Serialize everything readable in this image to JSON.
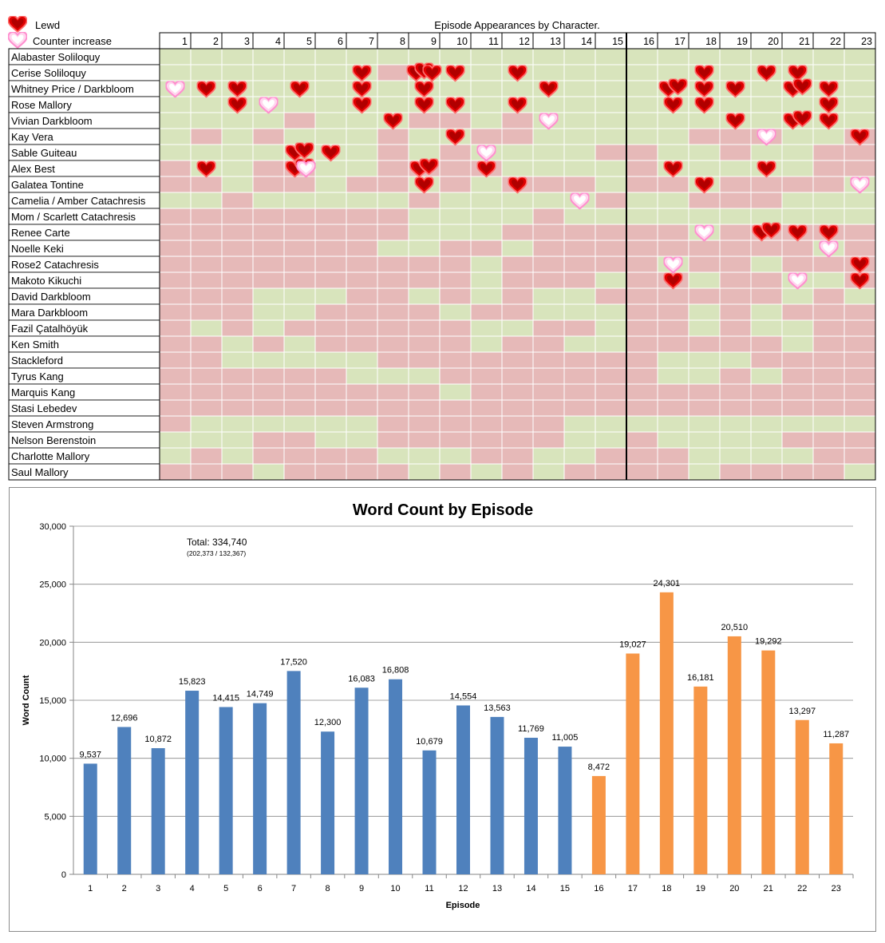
{
  "legend": {
    "lewd": "Lewd",
    "counter": "Counter increase"
  },
  "table": {
    "title": "Episode Appearances by Character.",
    "episodes": [
      "1",
      "2",
      "3",
      "4",
      "5",
      "6",
      "7",
      "8",
      "9",
      "10",
      "11",
      "12",
      "13",
      "14",
      "15",
      "16",
      "17",
      "18",
      "19",
      "20",
      "21",
      "22",
      "23"
    ],
    "characters": [
      "Alabaster Soliloquy",
      "Cerise Soliloquy",
      "Whitney Price / Darkbloom",
      "Rose Mallory",
      "Vivian Darkbloom",
      "Kay Vera",
      "Sable Guiteau",
      "Alex Best",
      "Galatea Tontine",
      "Camelia / Amber Catachresis",
      "Mom / Scarlett Catachresis",
      "Renee Carte",
      "Noelle Keki",
      "Rose2 Catachresis",
      "Makoto Kikuchi",
      "David Darkbloom",
      "Mara Darkbloom",
      "Fazil Çatalhöyük",
      "Ken Smith",
      "Stackleford",
      "Tyrus Kang",
      "Marquis Kang",
      "Stasi Lebedev",
      "Steven Armstrong",
      "Nelson Berenstoin",
      "Charlotte Mallory",
      "Saul Mallory"
    ],
    "appearances": [
      "GGGGGGGGGGGGGGGGGGGGGGG",
      "GGGGGGGRGGGGGGGGGGGGGGG",
      "GGGGGGGGGGGGGGGGGGGGGGG",
      "GGGGGGGGGGGGGGGGGGGGGGG",
      "GGGGRGGGRRGRGGGGGGGGGGG",
      "GRGRGGGRGGRRGGGGGRRRGGR",
      "GGGGGGGRGRGGGGRRGGRGGRR",
      "RGGRRGGRRRRGGGGRGGGGGRR",
      "RRGRRGRRGRGRRRGRRGRRRRG",
      "GGRGGGGGRGGGGGRGGRRRGGG",
      "RRRRRRRRGGGGRGGGGGGGGGG",
      "RRRRRRRRGGGRRRRRRGRRRRR",
      "RRRRRRRGGRRGRRRRRRRRRGR",
      "RRRRRRRRRRGRRRRRGRRGRRR",
      "RRRRRRRRRRGRRRGRRGRRGGR",
      "RRRGGGRRGRGRGGRRRRRRGRG",
      "RRRGGRRRRGRRGGGRRGRGRRR",
      "RGRGRRRRRRGGRRGRRGRGGRR",
      "RRGRGRRRRRGRRGGRRRRRGRR",
      "RRGGGGGRRRRRRRRRGGGRRRR",
      "RRRRRRGGGRRRRRRRGGRGRRR",
      "RRRRRRRRRGRRRRRRRRRRRRR",
      "RRRRRRRRRRRRRRRRRRRRRRR",
      "RGGGGGGRRRRRRGGGGGGGGGG",
      "GGGRRGGRRRRRRGGRGGGGRRR",
      "GRGRRRRGGGRRGGRRRGGGGRR",
      "RRRGRRRRGRGRGRRRRGRRRRG"
    ],
    "markers": [
      {
        "row": 1,
        "ep": 7,
        "type": "lewd",
        "count": 1
      },
      {
        "row": 1,
        "ep": 9,
        "type": "lewd",
        "count": 3
      },
      {
        "row": 1,
        "ep": 10,
        "type": "lewd",
        "count": 1
      },
      {
        "row": 1,
        "ep": 12,
        "type": "lewd",
        "count": 1
      },
      {
        "row": 1,
        "ep": 18,
        "type": "lewd",
        "count": 1
      },
      {
        "row": 1,
        "ep": 20,
        "type": "lewd",
        "count": 1
      },
      {
        "row": 1,
        "ep": 21,
        "type": "lewd",
        "count": 1
      },
      {
        "row": 2,
        "ep": 1,
        "type": "counter",
        "count": 1
      },
      {
        "row": 2,
        "ep": 2,
        "type": "lewd",
        "count": 1
      },
      {
        "row": 2,
        "ep": 3,
        "type": "lewd",
        "count": 1
      },
      {
        "row": 2,
        "ep": 5,
        "type": "lewd",
        "count": 1
      },
      {
        "row": 2,
        "ep": 7,
        "type": "lewd",
        "count": 1
      },
      {
        "row": 2,
        "ep": 9,
        "type": "lewd",
        "count": 1
      },
      {
        "row": 2,
        "ep": 13,
        "type": "lewd",
        "count": 1
      },
      {
        "row": 2,
        "ep": 17,
        "type": "lewd",
        "count": 2
      },
      {
        "row": 2,
        "ep": 18,
        "type": "lewd",
        "count": 1
      },
      {
        "row": 2,
        "ep": 19,
        "type": "lewd",
        "count": 1
      },
      {
        "row": 2,
        "ep": 21,
        "type": "lewd",
        "count": 2
      },
      {
        "row": 2,
        "ep": 22,
        "type": "lewd",
        "count": 1
      },
      {
        "row": 3,
        "ep": 3,
        "type": "lewd",
        "count": 1
      },
      {
        "row": 3,
        "ep": 4,
        "type": "counter",
        "count": 1
      },
      {
        "row": 3,
        "ep": 7,
        "type": "lewd",
        "count": 1
      },
      {
        "row": 3,
        "ep": 9,
        "type": "lewd",
        "count": 1
      },
      {
        "row": 3,
        "ep": 10,
        "type": "lewd",
        "count": 1
      },
      {
        "row": 3,
        "ep": 12,
        "type": "lewd",
        "count": 1
      },
      {
        "row": 3,
        "ep": 17,
        "type": "lewd",
        "count": 1
      },
      {
        "row": 3,
        "ep": 18,
        "type": "lewd",
        "count": 1
      },
      {
        "row": 3,
        "ep": 22,
        "type": "lewd",
        "count": 1
      },
      {
        "row": 4,
        "ep": 8,
        "type": "lewd",
        "count": 1
      },
      {
        "row": 4,
        "ep": 13,
        "type": "counter",
        "count": 1
      },
      {
        "row": 4,
        "ep": 19,
        "type": "lewd",
        "count": 1
      },
      {
        "row": 4,
        "ep": 21,
        "type": "lewd",
        "count": 2
      },
      {
        "row": 4,
        "ep": 22,
        "type": "lewd",
        "count": 1
      },
      {
        "row": 5,
        "ep": 10,
        "type": "lewd",
        "count": 1
      },
      {
        "row": 5,
        "ep": 20,
        "type": "counter",
        "count": 1
      },
      {
        "row": 5,
        "ep": 23,
        "type": "lewd",
        "count": 1
      },
      {
        "row": 6,
        "ep": 5,
        "type": "lewd",
        "count": 2
      },
      {
        "row": 6,
        "ep": 6,
        "type": "lewd",
        "count": 1
      },
      {
        "row": 6,
        "ep": 11,
        "type": "counter",
        "count": 1
      },
      {
        "row": 7,
        "ep": 2,
        "type": "lewd",
        "count": 1
      },
      {
        "row": 7,
        "ep": 5,
        "type": "lewd",
        "count": 2
      },
      {
        "row": 7,
        "ep": 5,
        "type": "counter",
        "count": 1
      },
      {
        "row": 7,
        "ep": 9,
        "type": "lewd",
        "count": 2
      },
      {
        "row": 7,
        "ep": 11,
        "type": "lewd",
        "count": 1
      },
      {
        "row": 7,
        "ep": 17,
        "type": "lewd",
        "count": 1
      },
      {
        "row": 7,
        "ep": 20,
        "type": "lewd",
        "count": 1
      },
      {
        "row": 8,
        "ep": 9,
        "type": "lewd",
        "count": 1
      },
      {
        "row": 8,
        "ep": 12,
        "type": "lewd",
        "count": 1
      },
      {
        "row": 8,
        "ep": 18,
        "type": "lewd",
        "count": 1
      },
      {
        "row": 8,
        "ep": 23,
        "type": "counter",
        "count": 1
      },
      {
        "row": 9,
        "ep": 14,
        "type": "counter",
        "count": 1
      },
      {
        "row": 11,
        "ep": 18,
        "type": "counter",
        "count": 1
      },
      {
        "row": 11,
        "ep": 20,
        "type": "lewd",
        "count": 2
      },
      {
        "row": 11,
        "ep": 21,
        "type": "lewd",
        "count": 1
      },
      {
        "row": 11,
        "ep": 22,
        "type": "lewd",
        "count": 1
      },
      {
        "row": 12,
        "ep": 22,
        "type": "counter",
        "count": 1
      },
      {
        "row": 13,
        "ep": 17,
        "type": "counter",
        "count": 1
      },
      {
        "row": 13,
        "ep": 23,
        "type": "lewd",
        "count": 1
      },
      {
        "row": 14,
        "ep": 17,
        "type": "lewd",
        "count": 1
      },
      {
        "row": 14,
        "ep": 21,
        "type": "counter",
        "count": 1
      },
      {
        "row": 14,
        "ep": 23,
        "type": "lewd",
        "count": 1
      }
    ],
    "colors": {
      "appears": "#d8e4bc",
      "absent": "#e6b9b8",
      "lewd": "#e00000",
      "counter": "#ff99cc"
    }
  },
  "chart_data": {
    "type": "bar",
    "title": "Word Count by Episode",
    "xlabel": "Episode",
    "ylabel": "Word Count",
    "categories": [
      "1",
      "2",
      "3",
      "4",
      "5",
      "6",
      "7",
      "8",
      "9",
      "10",
      "11",
      "12",
      "13",
      "14",
      "15",
      "16",
      "17",
      "18",
      "19",
      "20",
      "21",
      "22",
      "23"
    ],
    "values": [
      9537,
      12696,
      10872,
      15823,
      14415,
      14749,
      17520,
      12300,
      16083,
      16808,
      10679,
      14554,
      13563,
      11769,
      11005,
      8472,
      19027,
      24301,
      16181,
      20510,
      19292,
      13297,
      11287
    ],
    "value_labels": [
      "9,537",
      "12,696",
      "10,872",
      "15,823",
      "14,415",
      "14,749",
      "17,520",
      "12,300",
      "16,083",
      "16,808",
      "10,679",
      "14,554",
      "13,563",
      "11,769",
      "11,005",
      "8,472",
      "19,027",
      "24,301",
      "16,181",
      "20,510",
      "19,292",
      "13,297",
      "11,287"
    ],
    "yticks": [
      "0",
      "5,000",
      "10,000",
      "15,000",
      "20,000",
      "25,000",
      "30,000"
    ],
    "ylim": [
      0,
      30000
    ],
    "grid": true,
    "colors": {
      "first": "#4f81bd",
      "second": "#f79646"
    },
    "color_split_after": 15,
    "annotation": {
      "total": "Total: 334,740",
      "breakdown": "(202,373 / 132,367)"
    }
  }
}
